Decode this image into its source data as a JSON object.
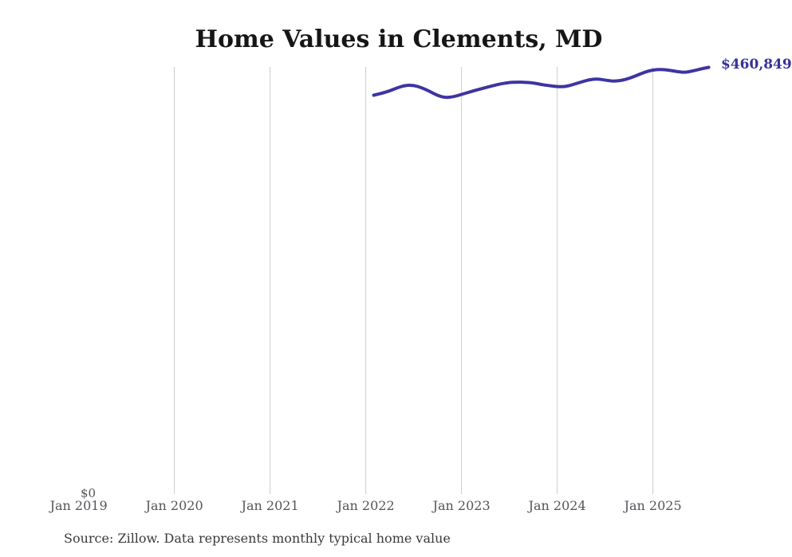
{
  "source_note": "Source: Zillow. Data represents monthly typical home value",
  "colors": {
    "line": "#3d35a1",
    "end_label": "#37319b",
    "gridline": "#cccccc",
    "axis_label": "#54545a",
    "title": "#161616",
    "source": "#3a3a3a",
    "background": "#ffffff"
  },
  "chart_data": {
    "type": "line",
    "title": "Home Values in Clements, MD",
    "xlabel": "",
    "ylabel": "",
    "y0_label": "$0",
    "end_label": "$460,849",
    "end_value": 460849,
    "ylim": [
      0,
      460849
    ],
    "grid": "vertical-only",
    "legend": "none",
    "x_tick_labels": [
      "Jan 2019",
      "Jan 2020",
      "Jan 2021",
      "Jan 2022",
      "Jan 2023",
      "Jan 2024",
      "Jan 2025"
    ],
    "series": [
      {
        "name": "Monthly typical home value",
        "x": [
          "2022-02",
          "2022-03",
          "2022-04",
          "2022-05",
          "2022-06",
          "2022-07",
          "2022-08",
          "2022-09",
          "2022-10",
          "2022-11",
          "2022-12",
          "2023-01",
          "2023-02",
          "2023-03",
          "2023-04",
          "2023-05",
          "2023-06",
          "2023-07",
          "2023-08",
          "2023-09",
          "2023-10",
          "2023-11",
          "2023-12",
          "2024-01",
          "2024-02",
          "2024-03",
          "2024-04",
          "2024-05",
          "2024-06",
          "2024-07",
          "2024-08",
          "2024-09",
          "2024-10",
          "2024-11",
          "2024-12",
          "2025-01",
          "2025-02",
          "2025-03",
          "2025-04",
          "2025-05",
          "2025-06",
          "2025-07",
          "2025-08"
        ],
        "values": [
          430700,
          432800,
          435400,
          438900,
          441500,
          441500,
          438900,
          435000,
          430300,
          428100,
          429000,
          431600,
          434100,
          436700,
          438900,
          441100,
          443200,
          444500,
          444900,
          444700,
          444100,
          442300,
          441100,
          439900,
          439900,
          442300,
          444900,
          447500,
          448400,
          447100,
          445800,
          446600,
          448800,
          452200,
          455700,
          458000,
          458700,
          457800,
          456300,
          455200,
          457000,
          459100,
          460849
        ]
      }
    ]
  }
}
